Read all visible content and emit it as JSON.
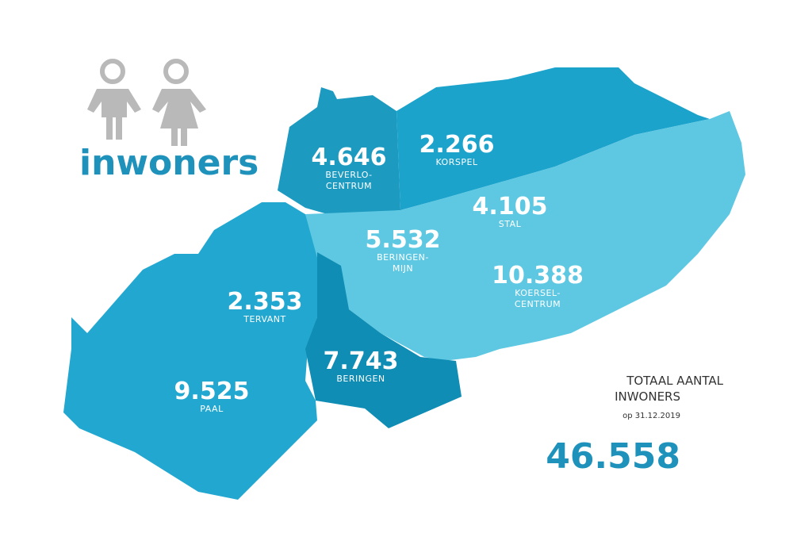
{
  "header": {
    "title": "inwoners"
  },
  "regions": [
    {
      "value": "4.646",
      "name_lines": [
        "BEVERLO-",
        "CENTRUM"
      ]
    },
    {
      "value": "2.266",
      "name_lines": [
        "KORSPEL"
      ]
    },
    {
      "value": "4.105",
      "name_lines": [
        "STAL"
      ]
    },
    {
      "value": "5.532",
      "name_lines": [
        "BERINGEN-",
        "MIJN"
      ]
    },
    {
      "value": "10.388",
      "name_lines": [
        "KOERSEL-",
        "CENTRUM"
      ]
    },
    {
      "value": "2.353",
      "name_lines": [
        "TERVANT"
      ]
    },
    {
      "value": "7.743",
      "name_lines": [
        "BERINGEN"
      ]
    },
    {
      "value": "9.525",
      "name_lines": [
        "PAAL"
      ]
    }
  ],
  "total": {
    "label_lines": [
      "TOTAAL AANTAL",
      "INWONERS"
    ],
    "date": "op 31.12.2019",
    "value": "46.558"
  }
}
